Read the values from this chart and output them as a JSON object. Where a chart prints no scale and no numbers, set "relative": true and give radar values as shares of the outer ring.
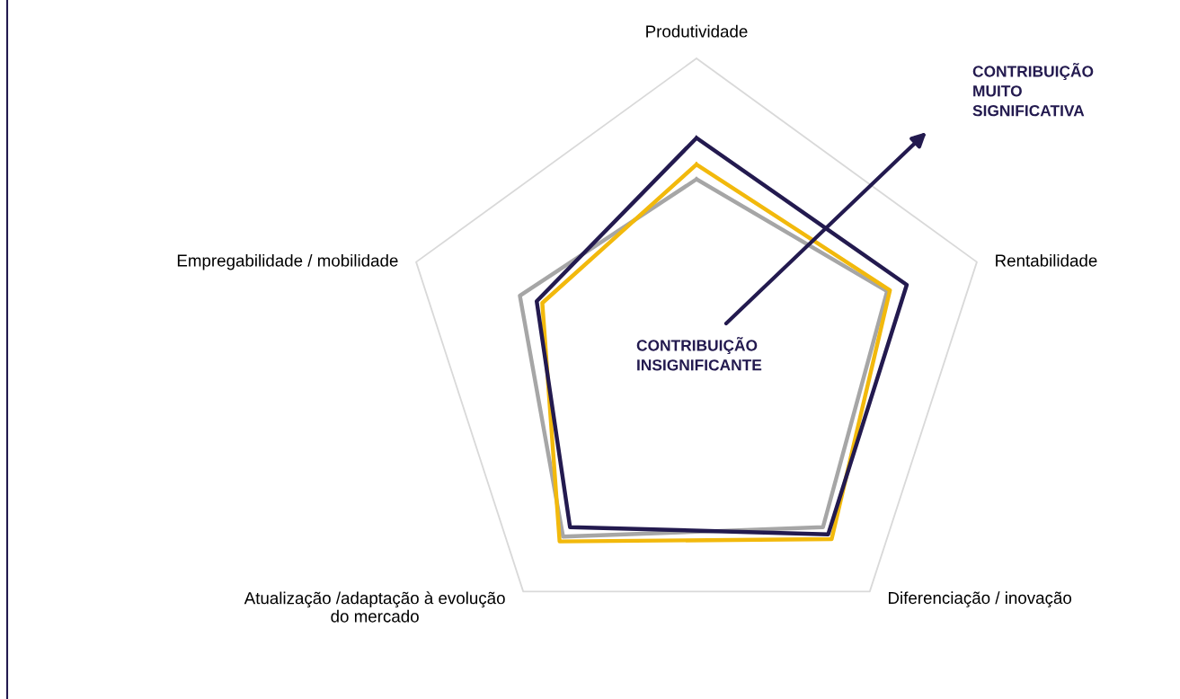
{
  "chart_data": {
    "type": "radar",
    "relative": true,
    "categories": [
      "Produtividade",
      "Rentabilidade",
      "Diferenciação / inovação",
      "Atualização /adaptação à evolução\ndo mercado",
      "Empregabilidade / mobilidade"
    ],
    "series": [
      {
        "color": "#a6a6a6",
        "values": [
          0.59,
          0.68,
          0.73,
          0.77,
          0.63
        ]
      },
      {
        "color": "#f2b90c",
        "values": [
          0.64,
          0.69,
          0.78,
          0.79,
          0.55
        ]
      },
      {
        "color": "#231a4f",
        "values": [
          0.73,
          0.75,
          0.76,
          0.73,
          0.57
        ]
      }
    ],
    "annotations": [
      "CONTRIBUIÇÃO\nMUITO\nSIGNIFICATIVA",
      "CONTRIBUIÇÃO\nINSIGNIFICANTE"
    ]
  }
}
